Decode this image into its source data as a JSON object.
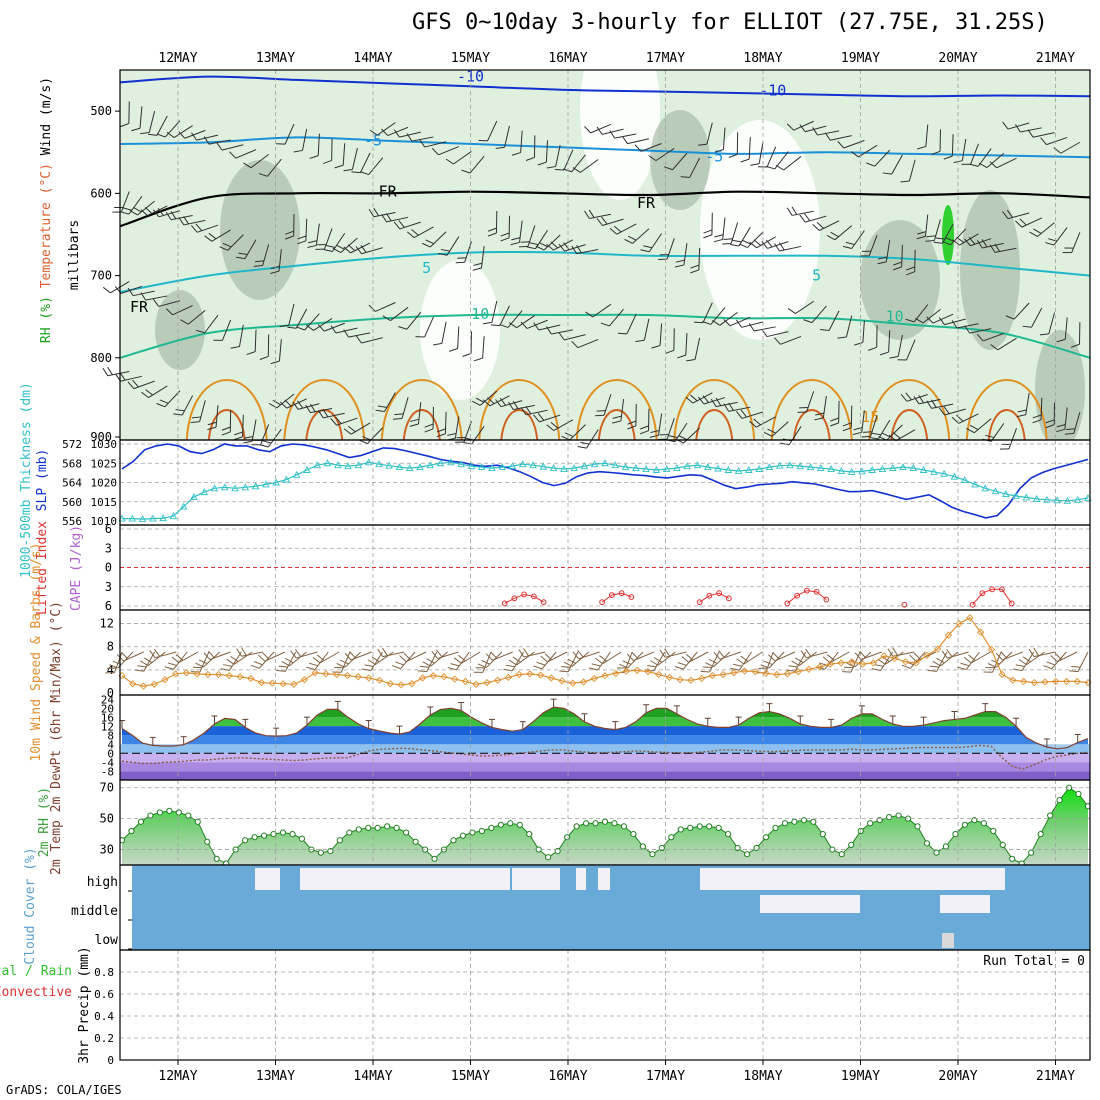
{
  "title": "GFS 0~10day 3-hourly for ELLIOT (27.75E, 31.25S)",
  "credit": "GrADS: COLA/IGES",
  "colors": {
    "frame": "#000000",
    "grid": "#a0a0a0",
    "rh_fill": "#dff0df",
    "rh_dark": "#a8bca8",
    "slp": "#1030d0",
    "thickness": "#30c0c8",
    "lifted": "#e03030",
    "cape": "#b060d0",
    "wind": "#e09030",
    "barb": "#806040",
    "temp_fill": "#2f7de0",
    "temp_green": "#30b030",
    "dewpoint": "#8a5a40",
    "rh2m": "#40c040",
    "cloud": "#6aaad8",
    "cloud_gap": "#f2f0f8",
    "precip": "#30c030"
  },
  "chart_data": [
    {
      "panel": "upper-air",
      "type": "area",
      "dates": [
        "12MAY",
        "13MAY",
        "14MAY",
        "15MAY",
        "16MAY",
        "17MAY",
        "18MAY",
        "19MAY",
        "20MAY",
        "21MAY"
      ],
      "ylabel_parts": [
        "RH (%)",
        "Temperature (°C)",
        "Wind (m/s)"
      ],
      "ylabel_unit": "millibars",
      "yticks": [
        500,
        600,
        700,
        800,
        900
      ],
      "ylim": [
        900,
        450
      ],
      "contours": [
        {
          "label": "-10",
          "color": "#1030d0",
          "p": [
            465,
            458,
            462,
            466,
            470,
            474,
            476,
            478,
            480,
            482,
            481,
            482
          ]
        },
        {
          "label": "-5",
          "color": "#1a90d8",
          "p": [
            540,
            538,
            532,
            536,
            540,
            544,
            548,
            552,
            550,
            552,
            554,
            556
          ]
        },
        {
          "label": "FR",
          "color": "#000000",
          "p": [
            640,
            605,
            600,
            600,
            598,
            600,
            602,
            598,
            600,
            602,
            600,
            605
          ]
        },
        {
          "label": "5",
          "color": "#20b8c8",
          "p": [
            720,
            700,
            688,
            678,
            672,
            672,
            676,
            676,
            676,
            680,
            690,
            700
          ]
        },
        {
          "label": "10",
          "color": "#20b890",
          "p": [
            800,
            770,
            760,
            752,
            748,
            748,
            748,
            752,
            752,
            760,
            770,
            800
          ]
        }
      ],
      "contour_labels": [
        {
          "text": "-10",
          "t": 3.0,
          "p": 458,
          "color": "#1030d0"
        },
        {
          "text": "-10",
          "t": 6.1,
          "p": 475,
          "color": "#1030d0"
        },
        {
          "text": "-5",
          "t": 2.0,
          "p": 536,
          "color": "#1a90d8"
        },
        {
          "text": "-5",
          "t": 5.5,
          "p": 555,
          "color": "#1a90d8"
        },
        {
          "text": "FR",
          "t": 2.15,
          "p": 598,
          "color": "#000000"
        },
        {
          "text": "FR",
          "t": 4.8,
          "p": 612,
          "color": "#000000"
        },
        {
          "text": "FR",
          "t": -0.4,
          "p": 738,
          "color": "#000000"
        },
        {
          "text": "5",
          "t": 2.55,
          "p": 691,
          "color": "#20b8c8"
        },
        {
          "text": "5",
          "t": 6.55,
          "p": 700,
          "color": "#20b8c8"
        },
        {
          "text": "10",
          "t": 3.1,
          "p": 747,
          "color": "#20b890"
        },
        {
          "text": "10",
          "t": 7.35,
          "p": 750,
          "color": "#20b890"
        },
        {
          "text": "15",
          "t": 7.1,
          "p": 872,
          "color": "#e09020"
        }
      ]
    },
    {
      "panel": "slp-thickness",
      "type": "line",
      "ylabel_left": "1000-500mb Thickness (dm)",
      "ylabel_right": "SLP (mb)",
      "yticks_left": [
        556,
        560,
        564,
        568,
        572
      ],
      "yticks_right": [
        1010,
        1015,
        1020,
        1025,
        1030
      ],
      "series": [
        {
          "name": "SLP (mb)",
          "axis": "right",
          "values": [
            1023.5,
            1025.5,
            1028.5,
            1029.5,
            1030,
            1029.5,
            1028,
            1027.5,
            1028.5,
            1030,
            1029.5,
            1029.5,
            1028.5,
            1028,
            1029.5,
            1030,
            1029.8,
            1029.2,
            1028.5,
            1027.5,
            1026.5,
            1027,
            1028,
            1029,
            1028.8,
            1028.2,
            1027.5,
            1026.8,
            1026,
            1025.5,
            1025.2,
            1024.5,
            1024.2,
            1024.5,
            1023.8,
            1022.8,
            1021.5,
            1020,
            1019.2,
            1019.8,
            1021.5,
            1022.5,
            1022.8,
            1022.6,
            1022.3,
            1022,
            1021.8,
            1021.4,
            1021.2,
            1021.6,
            1022,
            1021.8,
            1020.6,
            1019.3,
            1018.4,
            1018.8,
            1019.4,
            1019.6,
            1019.8,
            1020.2,
            1019.9,
            1019.6,
            1018.9,
            1018.2,
            1017.6,
            1017.7,
            1017.9,
            1017.2,
            1016.4,
            1015.6,
            1016.2,
            1016.8,
            1015.3,
            1013.6,
            1012.5,
            1011.7,
            1010.8,
            1011.4,
            1014.2,
            1018.4,
            1021.2,
            1022.6,
            1023.6,
            1024.4,
            1025.2,
            1026
          ]
        },
        {
          "name": "1000-500mb Thickness (dm)",
          "axis": "left",
          "values": [
            556.5,
            556.5,
            556.4,
            556.5,
            556.6,
            557,
            559,
            561,
            562,
            562.8,
            563,
            562.8,
            563,
            563.2,
            563.6,
            564,
            564.6,
            565.6,
            566.6,
            567.6,
            568,
            567.6,
            567.4,
            567.6,
            568.2,
            567.8,
            567.5,
            567.2,
            567,
            567.2,
            567.6,
            568,
            568.2,
            567.8,
            567.4,
            567.2,
            567,
            567.2,
            567.4,
            567.8,
            567.6,
            567.3,
            567,
            566.8,
            567,
            567.4,
            567.8,
            568,
            567.6,
            567.2,
            567,
            566.8,
            566.6,
            566.8,
            567,
            567.4,
            567.6,
            567.2,
            566.9,
            566.6,
            566.4,
            566.6,
            566.8,
            567.2,
            567.5,
            567.6,
            567.4,
            567.2,
            567,
            566.8,
            566.4,
            566.2,
            566.3,
            566.6,
            566.8,
            567,
            567.2,
            567,
            566.6,
            566.2,
            565.8,
            565.2,
            564.5,
            563.6,
            562.8,
            562.2,
            561.6,
            561.2,
            560.9,
            560.6,
            560.4,
            560.3,
            560.2,
            560.4,
            560.8
          ]
        }
      ]
    },
    {
      "panel": "stability",
      "type": "line",
      "ylabel_left": "Lifted Index",
      "ylabel_right": "CAPE (J/kg)",
      "yticks": [
        "-6",
        "-3",
        "0",
        "3",
        "6"
      ],
      "ylim": [
        -6,
        6
      ],
      "series": [
        {
          "name": "Lifted Index",
          "values_at": [
            [
              3.35,
              5.6
            ],
            [
              3.45,
              4.8
            ],
            [
              3.55,
              4.2
            ],
            [
              3.65,
              4.5
            ],
            [
              3.75,
              5.4
            ],
            [
              4.35,
              5.4
            ],
            [
              4.45,
              4.3
            ],
            [
              4.55,
              4.0
            ],
            [
              4.65,
              4.6
            ],
            [
              5.35,
              5.4
            ],
            [
              5.45,
              4.4
            ],
            [
              5.55,
              4.0
            ],
            [
              5.65,
              4.8
            ],
            [
              6.25,
              5.6
            ],
            [
              6.35,
              4.4
            ],
            [
              6.45,
              3.6
            ],
            [
              6.55,
              3.8
            ],
            [
              6.65,
              5.0
            ],
            [
              7.45,
              5.8
            ],
            [
              8.15,
              5.8
            ],
            [
              8.25,
              4.0
            ],
            [
              8.35,
              3.4
            ],
            [
              8.45,
              3.4
            ],
            [
              8.55,
              5.6
            ]
          ]
        }
      ]
    },
    {
      "panel": "surface-wind",
      "type": "line",
      "ylabel": "10m Wind Speed & Barbs (m/s)",
      "yticks": [
        0,
        4,
        8,
        12
      ],
      "ylim": [
        0,
        14
      ],
      "series": [
        {
          "name": "10m Wind Speed",
          "values": [
            3,
            1.6,
            1.2,
            1.5,
            2.3,
            3.3,
            3.5,
            3.3,
            3.2,
            3.2,
            3.0,
            2.8,
            2.5,
            1.8,
            1.7,
            1.6,
            1.5,
            2.3,
            3.5,
            3.3,
            3.2,
            3.0,
            2.8,
            2.6,
            2.2,
            1.6,
            1.4,
            1.6,
            2.6,
            3.0,
            2.8,
            2.4,
            2.0,
            1.5,
            1.8,
            2.2,
            2.7,
            3.2,
            3.3,
            3.1,
            2.6,
            2.1,
            1.7,
            1.9,
            2.5,
            3.0,
            3.4,
            3.8,
            3.9,
            3.7,
            3.2,
            2.7,
            2.3,
            2.2,
            2.5,
            3.0,
            3.2,
            3.5,
            3.8,
            3.7,
            3.4,
            3.2,
            3.3,
            3.7,
            4.1,
            4.5,
            5.0,
            5.2,
            5.4,
            5.0,
            5.2,
            6.4,
            6.0,
            5.4,
            5.2,
            6.5,
            7.6,
            10,
            12,
            13,
            10.5,
            7.5,
            3.2,
            2.2,
            2.0,
            1.8,
            1.9,
            2.0,
            2.0,
            2.0,
            1.8
          ]
        }
      ]
    },
    {
      "panel": "surface-temp",
      "type": "area",
      "ylabel": "2m Temp 2m DewPt (6hr Min/Max) (°C)",
      "yticks": [
        -8,
        -4,
        0,
        4,
        8,
        12,
        16,
        20,
        24
      ],
      "ylim": [
        -11,
        25
      ],
      "series": [
        {
          "name": "2m Temp",
          "values": [
            11,
            8,
            4.5,
            3.5,
            3.2,
            3.2,
            3.8,
            6,
            9,
            13,
            15.5,
            15,
            11.5,
            9,
            7.8,
            7.6,
            7.8,
            9,
            12.5,
            17,
            19.5,
            19.5,
            16,
            13,
            11,
            10,
            9,
            8.5,
            9.5,
            13,
            17,
            19.5,
            20,
            19,
            16,
            13.5,
            11.5,
            10.5,
            9.8,
            10.5,
            14,
            18,
            20.5,
            20,
            17.5,
            14,
            12,
            11,
            10.5,
            11.5,
            14,
            18,
            20,
            20,
            17.5,
            15,
            13,
            12,
            11.5,
            11.5,
            12.5,
            15.5,
            18,
            18.5,
            17.5,
            15.5,
            13,
            12,
            11.5,
            11.5,
            12.5,
            15.5,
            17.5,
            17.5,
            15,
            13,
            12,
            12,
            12.5,
            13.5,
            14.5,
            15,
            15.5,
            17,
            18.5,
            18.5,
            16,
            12,
            7,
            4.5,
            2.8,
            2,
            2.5,
            4.8,
            6.5
          ]
        },
        {
          "name": "2m DewPt",
          "values": [
            -3.5,
            -4,
            -4.5,
            -4.5,
            -4,
            -3.8,
            -3.5,
            -3,
            -3,
            -2.5,
            -2.2,
            -2,
            -2.2,
            -2.5,
            -2.8,
            -3,
            -3.2,
            -3,
            -2.5,
            -2.2,
            -2,
            -2,
            -0.5,
            1,
            1.8,
            2,
            2.2,
            2,
            1.5,
            1,
            0.5,
            0,
            -0.5,
            -1,
            -1.2,
            -1,
            -0.5,
            0,
            0.5,
            1,
            1.5,
            1.5,
            1,
            0.6,
            0.3,
            0.3,
            0.5,
            0.8,
            1,
            0.8,
            0.5,
            0.3,
            0.2,
            0.2,
            0.5,
            1,
            1.5,
            1.5,
            1.2,
            1,
            0.8,
            0.8,
            1,
            1.3,
            1.5,
            1.5,
            1.5,
            1.5,
            1.8,
            1.5,
            1.5,
            1.8,
            2,
            2.2,
            2.5,
            2.5,
            2.5,
            2.5,
            2.5,
            3,
            3.5,
            3,
            -2,
            -6,
            -7,
            -5,
            -3,
            -1.5,
            -0.8,
            0,
            0.5
          ]
        }
      ]
    },
    {
      "panel": "surface-rh",
      "type": "area",
      "ylabel": "2m RH (%)",
      "yticks": [
        30,
        50,
        70
      ],
      "ylim": [
        20,
        75
      ],
      "series": [
        {
          "name": "2m RH",
          "values": [
            36,
            42,
            48,
            52,
            54,
            55,
            54,
            52,
            48,
            35,
            24,
            21,
            30,
            36,
            38,
            39,
            40,
            41,
            40,
            37,
            30,
            28,
            29,
            36,
            41,
            43,
            44,
            44,
            45,
            44,
            41,
            35,
            30,
            24,
            30,
            36,
            39,
            41,
            42,
            44,
            46,
            47,
            46,
            40,
            30,
            25,
            29,
            38,
            45,
            47,
            47,
            48,
            47,
            45,
            40,
            32,
            27,
            31,
            38,
            43,
            44,
            45,
            45,
            44,
            40,
            31,
            27,
            31,
            38,
            44,
            47,
            48,
            49,
            48,
            40,
            30,
            27,
            33,
            42,
            47,
            49,
            51,
            52,
            50,
            45,
            34,
            28,
            32,
            40,
            46,
            49,
            47,
            42,
            33,
            24,
            21,
            28,
            40,
            52,
            62,
            70,
            66,
            58
          ]
        }
      ]
    },
    {
      "panel": "cloud-cover",
      "type": "heatmap",
      "ylabel": "Cloud Cover (%)",
      "levels": [
        "high",
        "middle",
        "low"
      ]
    },
    {
      "panel": "precip",
      "type": "bar",
      "ylabel_left": "Total / Rain Convective",
      "ylabel_right": "3hr Precip (mm)",
      "yticks": [
        "0",
        "0.2",
        "0.4",
        "0.6",
        "0.8"
      ],
      "ylim": [
        0,
        1
      ],
      "run_total": "Run Total = 0",
      "values": []
    }
  ]
}
